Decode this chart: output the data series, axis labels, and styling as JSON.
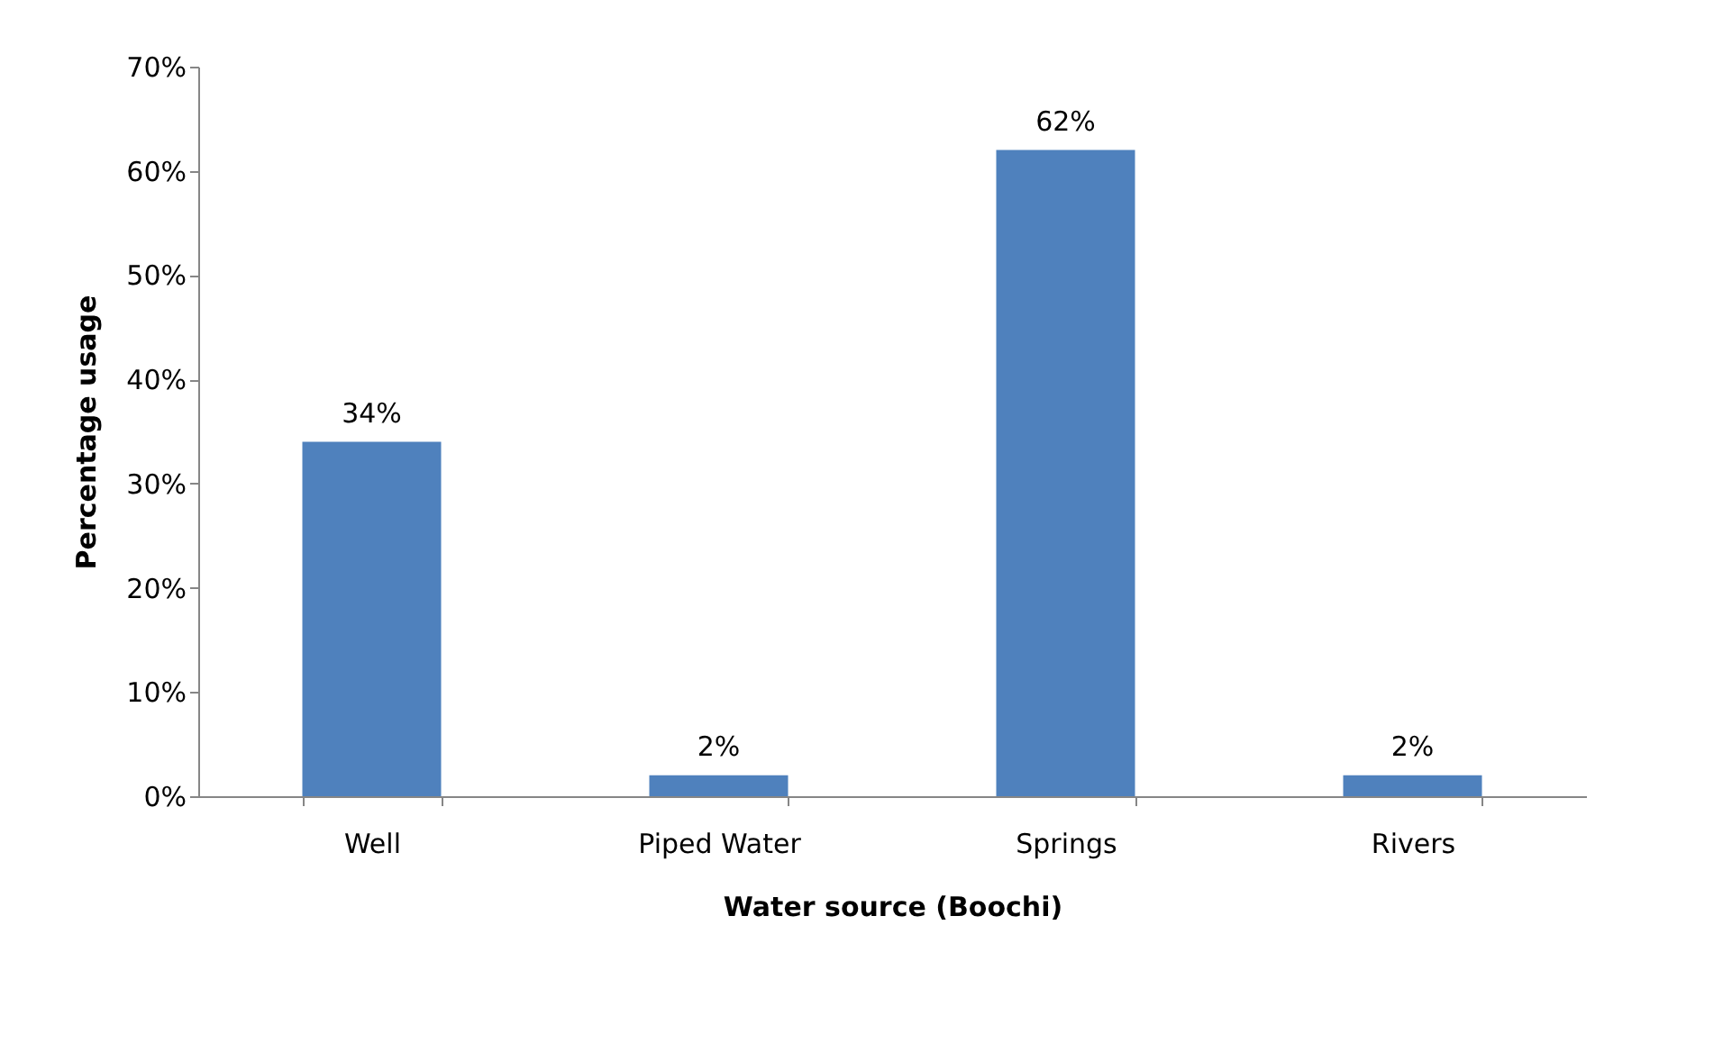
{
  "chart_data": {
    "type": "bar",
    "xlabel": "Water source (Boochi)",
    "ylabel": "Percentage usage",
    "categories": [
      "Well",
      "Piped Water",
      "Springs",
      "Rivers"
    ],
    "values": [
      34,
      2,
      62,
      2
    ],
    "color": "#4f81bd",
    "value_labels": [
      "34%",
      "2%",
      "62%",
      "2%"
    ],
    "ylim": [
      0,
      70
    ],
    "yticks": [
      {
        "value": 0,
        "label": "0%"
      },
      {
        "value": 10,
        "label": "10%"
      },
      {
        "value": 20,
        "label": "20%"
      },
      {
        "value": 30,
        "label": "30%"
      },
      {
        "value": 40,
        "label": "40%"
      },
      {
        "value": 50,
        "label": "50%"
      },
      {
        "value": 60,
        "label": "60%"
      },
      {
        "value": 70,
        "label": "70%"
      }
    ],
    "grid": false
  }
}
